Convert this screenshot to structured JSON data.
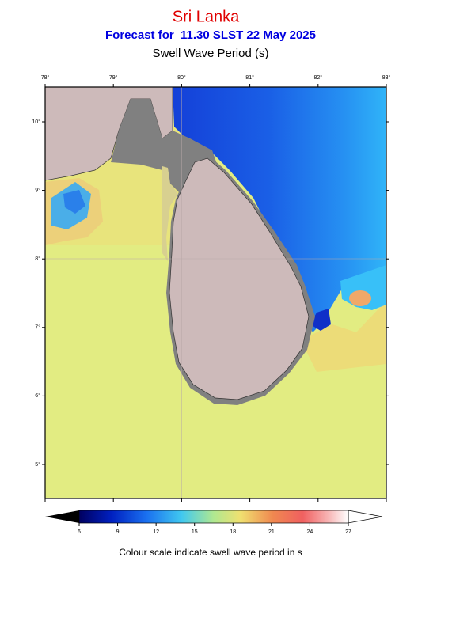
{
  "header": {
    "title": "Sri Lanka",
    "subtitle": "Forecast for  11.30 SLST 22 May 2025",
    "parameter": "Swell Wave Period (s)"
  },
  "map": {
    "lon_labels": [
      "78°",
      "79°",
      "80°",
      "81°",
      "82°",
      "83°"
    ],
    "lat_labels": [
      "10°",
      "9°",
      "8°",
      "7°",
      "6°",
      "5°"
    ]
  },
  "colorbar": {
    "ticks": [
      6,
      9,
      12,
      15,
      18,
      21,
      24,
      27
    ],
    "caption": "Colour scale indicate swell wave period in s"
  }
}
